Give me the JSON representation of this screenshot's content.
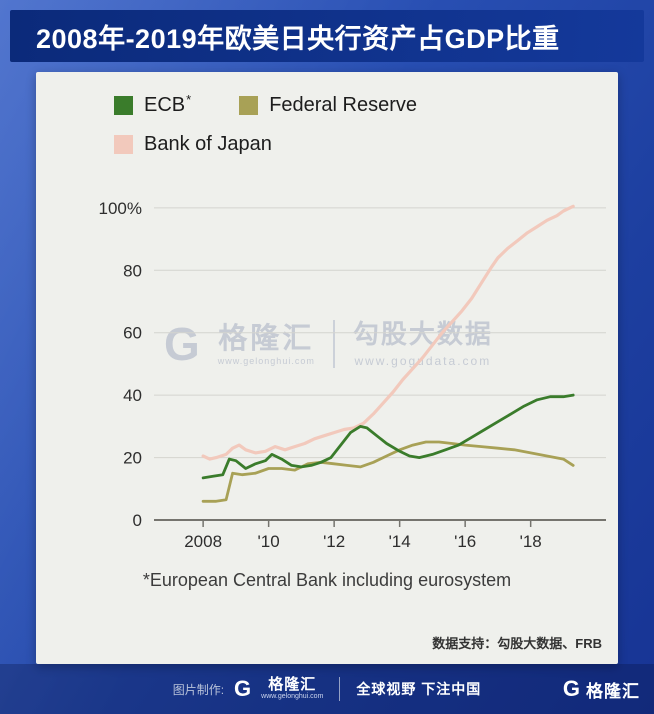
{
  "header": {
    "title": "2008年-2019年欧美日央行资产占GDP比重"
  },
  "legend": {
    "items": [
      {
        "label": "ECB",
        "sup": "*",
        "color": "#3a7c2b"
      },
      {
        "label": "Federal Reserve",
        "sup": "",
        "color": "#a8a156"
      },
      {
        "label": "Bank of Japan",
        "sup": "",
        "color": "#f2c9bc"
      }
    ]
  },
  "chart_data": {
    "type": "line",
    "title": "2008年-2019年欧美日央行资产占GDP比重",
    "xlabel": "",
    "ylabel": "",
    "grid": true,
    "legend_position": "top-left",
    "xlim": [
      2006.5,
      2020.3
    ],
    "ylim": [
      0,
      107
    ],
    "yticks": [
      0,
      20,
      40,
      60,
      80,
      100
    ],
    "ytick_labels": [
      "0",
      "20",
      "40",
      "60",
      "80",
      "100%"
    ],
    "xticks": [
      2008,
      2010,
      2012,
      2014,
      2016,
      2018
    ],
    "xtick_labels": [
      "2008",
      "'10",
      "'12",
      "'14",
      "'16",
      "'18"
    ],
    "grid_color": "#d4d4cf",
    "axis_color": "#75746e",
    "series": [
      {
        "name": "ECB",
        "color": "#3a7c2b",
        "width": 2.8,
        "points": [
          [
            2008.0,
            13.5
          ],
          [
            2008.3,
            14
          ],
          [
            2008.6,
            14.5
          ],
          [
            2008.8,
            19.5
          ],
          [
            2009.0,
            19
          ],
          [
            2009.3,
            16.5
          ],
          [
            2009.6,
            18
          ],
          [
            2009.9,
            19
          ],
          [
            2010.1,
            21
          ],
          [
            2010.4,
            19.5
          ],
          [
            2010.7,
            17.5
          ],
          [
            2011.0,
            17
          ],
          [
            2011.3,
            17.5
          ],
          [
            2011.6,
            18.5
          ],
          [
            2011.9,
            20
          ],
          [
            2012.2,
            24
          ],
          [
            2012.5,
            28
          ],
          [
            2012.8,
            30
          ],
          [
            2013.0,
            29.5
          ],
          [
            2013.3,
            27
          ],
          [
            2013.6,
            24.5
          ],
          [
            2014.0,
            22
          ],
          [
            2014.3,
            20.5
          ],
          [
            2014.6,
            20
          ],
          [
            2015.0,
            21
          ],
          [
            2015.4,
            22.5
          ],
          [
            2015.8,
            24
          ],
          [
            2016.2,
            26.5
          ],
          [
            2016.6,
            29
          ],
          [
            2017.0,
            31.5
          ],
          [
            2017.4,
            34
          ],
          [
            2017.8,
            36.5
          ],
          [
            2018.2,
            38.5
          ],
          [
            2018.6,
            39.5
          ],
          [
            2019.0,
            39.5
          ],
          [
            2019.3,
            40
          ]
        ]
      },
      {
        "name": "Federal Reserve",
        "color": "#a8a156",
        "width": 2.8,
        "points": [
          [
            2008.0,
            6
          ],
          [
            2008.4,
            6
          ],
          [
            2008.7,
            6.5
          ],
          [
            2008.9,
            15
          ],
          [
            2009.2,
            14.5
          ],
          [
            2009.6,
            15
          ],
          [
            2010.0,
            16.5
          ],
          [
            2010.4,
            16.5
          ],
          [
            2010.8,
            16
          ],
          [
            2011.2,
            18
          ],
          [
            2011.6,
            18.5
          ],
          [
            2012.0,
            18
          ],
          [
            2012.4,
            17.5
          ],
          [
            2012.8,
            17
          ],
          [
            2013.2,
            18.5
          ],
          [
            2013.6,
            20.5
          ],
          [
            2014.0,
            22.5
          ],
          [
            2014.4,
            24
          ],
          [
            2014.8,
            25
          ],
          [
            2015.2,
            25
          ],
          [
            2015.6,
            24.5
          ],
          [
            2016.0,
            24
          ],
          [
            2016.5,
            23.5
          ],
          [
            2017.0,
            23
          ],
          [
            2017.5,
            22.5
          ],
          [
            2018.0,
            21.5
          ],
          [
            2018.5,
            20.5
          ],
          [
            2019.0,
            19.5
          ],
          [
            2019.3,
            17.5
          ]
        ]
      },
      {
        "name": "Bank of Japan",
        "color": "#f2c9bc",
        "width": 3.2,
        "points": [
          [
            2008.0,
            20.5
          ],
          [
            2008.2,
            19.5
          ],
          [
            2008.4,
            20
          ],
          [
            2008.7,
            21
          ],
          [
            2008.9,
            23
          ],
          [
            2009.1,
            24
          ],
          [
            2009.3,
            22.5
          ],
          [
            2009.6,
            21.5
          ],
          [
            2009.9,
            22
          ],
          [
            2010.2,
            23.5
          ],
          [
            2010.5,
            22.5
          ],
          [
            2010.8,
            23.5
          ],
          [
            2011.1,
            24.5
          ],
          [
            2011.4,
            26
          ],
          [
            2011.7,
            27
          ],
          [
            2012.0,
            28
          ],
          [
            2012.3,
            29
          ],
          [
            2012.6,
            29.5
          ],
          [
            2012.9,
            31
          ],
          [
            2013.2,
            34
          ],
          [
            2013.5,
            37.5
          ],
          [
            2013.8,
            41
          ],
          [
            2014.1,
            45
          ],
          [
            2014.4,
            48.5
          ],
          [
            2014.7,
            52
          ],
          [
            2015.0,
            56
          ],
          [
            2015.3,
            60
          ],
          [
            2015.6,
            63.5
          ],
          [
            2015.9,
            67
          ],
          [
            2016.2,
            71
          ],
          [
            2016.5,
            76
          ],
          [
            2016.8,
            81
          ],
          [
            2017.0,
            84
          ],
          [
            2017.3,
            87
          ],
          [
            2017.6,
            89.5
          ],
          [
            2017.9,
            92
          ],
          [
            2018.2,
            94
          ],
          [
            2018.5,
            96
          ],
          [
            2018.8,
            97.5
          ],
          [
            2019.0,
            99
          ],
          [
            2019.3,
            100.5
          ]
        ]
      }
    ]
  },
  "watermark": {
    "g": "G",
    "brand": "格隆汇",
    "brand_url": "www.gelonghui.com",
    "product": "勾股大数据",
    "product_url": "www.gogudata.com"
  },
  "footnote": "*European Central Bank including eurosystem",
  "data_support": "数据支持：勾股大数据、FRB",
  "footer": {
    "made_by": "图片制作:",
    "g": "G",
    "brand": "格隆汇",
    "brand_url": "www.gelonghui.com",
    "slogan": "全球视野 下注中国",
    "right_g": "G",
    "right_brand": "格隆汇"
  }
}
